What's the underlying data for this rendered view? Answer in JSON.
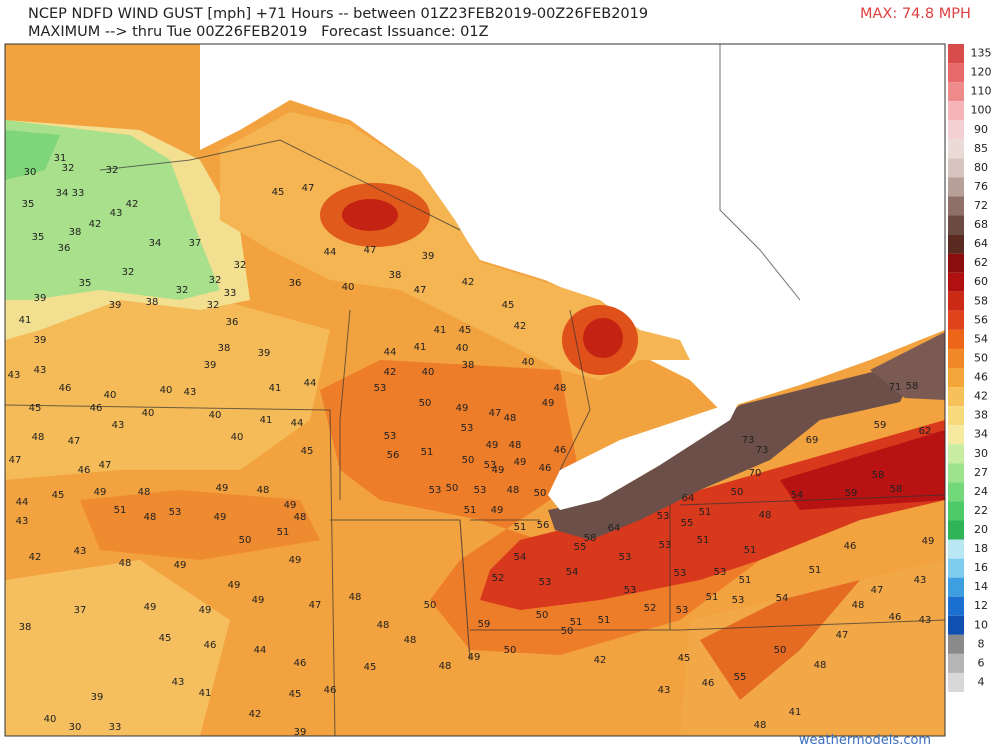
{
  "header": {
    "line1": "NCEP NDFD WIND GUST [mph] +71 Hours -- between 01Z23FEB2019-00Z26FEB2019",
    "line2": "MAXIMUM --> thru Tue 00Z26FEB2019   Forecast Issuance: 01Z",
    "max": "MAX: 74.8 MPH"
  },
  "colorbar": [
    {
      "value": 135,
      "color": "#d94c4c"
    },
    {
      "value": 120,
      "color": "#e86a6a"
    },
    {
      "value": 110,
      "color": "#ef8a8a"
    },
    {
      "value": 100,
      "color": "#f6b3b8"
    },
    {
      "value": 90,
      "color": "#f5d0d3"
    },
    {
      "value": 85,
      "color": "#eadbd7"
    },
    {
      "value": 80,
      "color": "#d8c4be"
    },
    {
      "value": 76,
      "color": "#b8a09a"
    },
    {
      "value": 72,
      "color": "#8e7068"
    },
    {
      "value": 68,
      "color": "#6b4a42"
    },
    {
      "value": 64,
      "color": "#5a2a20"
    },
    {
      "value": 62,
      "color": "#8b0d0d"
    },
    {
      "value": 60,
      "color": "#b01010"
    },
    {
      "value": 58,
      "color": "#cc2a14"
    },
    {
      "value": 56,
      "color": "#e0431a"
    },
    {
      "value": 54,
      "color": "#ec6518"
    },
    {
      "value": 50,
      "color": "#f08828"
    },
    {
      "value": 46,
      "color": "#f4a53a"
    },
    {
      "value": 42,
      "color": "#f6c15a"
    },
    {
      "value": 38,
      "color": "#f7da7c"
    },
    {
      "value": 34,
      "color": "#f6ea9e"
    },
    {
      "value": 30,
      "color": "#c8eda0"
    },
    {
      "value": 27,
      "color": "#9de48c"
    },
    {
      "value": 24,
      "color": "#72d87a"
    },
    {
      "value": 22,
      "color": "#4ccb68"
    },
    {
      "value": 20,
      "color": "#2fb558"
    },
    {
      "value": 18,
      "color": "#b9e7f3"
    },
    {
      "value": 16,
      "color": "#7fcdee"
    },
    {
      "value": 14,
      "color": "#3d9ee0"
    },
    {
      "value": 12,
      "color": "#1a6fd0"
    },
    {
      "value": 10,
      "color": "#1050b0"
    },
    {
      "value": 8,
      "color": "#8a8a8a"
    },
    {
      "value": 6,
      "color": "#b5b5b5"
    },
    {
      "value": 4,
      "color": "#d8d8d8"
    }
  ],
  "map_labels": [
    30,
    31,
    32,
    32,
    35,
    34,
    33,
    42,
    43,
    42,
    38,
    35,
    36,
    34,
    37,
    32,
    35,
    39,
    39,
    38,
    32,
    32,
    32,
    33,
    32,
    36,
    45,
    47,
    44,
    47,
    39,
    38,
    40,
    47,
    42,
    45,
    42,
    45,
    41,
    44,
    41,
    40,
    38,
    42,
    40,
    40,
    53,
    50,
    49,
    47,
    48,
    49,
    48,
    53,
    56,
    51,
    53,
    49,
    48,
    53,
    50,
    49,
    49,
    46,
    46,
    53,
    53,
    50,
    48,
    50,
    51,
    49,
    56,
    51,
    58,
    64,
    53,
    55,
    51,
    53,
    55,
    54,
    53,
    54,
    52,
    53,
    53,
    50,
    50,
    51,
    51,
    59,
    50,
    52,
    53,
    51,
    53,
    54,
    53,
    53,
    51,
    51,
    51,
    48,
    50,
    54,
    46,
    59,
    58,
    58,
    70,
    73,
    73,
    69,
    71,
    58,
    59,
    62,
    64,
    41,
    39,
    43,
    43,
    46,
    46,
    45,
    40,
    43,
    40,
    40,
    43,
    38,
    39,
    36,
    41,
    44,
    39,
    40,
    40,
    41,
    44,
    45,
    48,
    47,
    47,
    46,
    47,
    44,
    45,
    49,
    51,
    48,
    53,
    49,
    48,
    49,
    48,
    51,
    50,
    49,
    48,
    43,
    42,
    43,
    48,
    49,
    49,
    49,
    37,
    38,
    49,
    49,
    49,
    47,
    45,
    46,
    44,
    46,
    48,
    50,
    48,
    48,
    45,
    46,
    45,
    42,
    39,
    41,
    43,
    39,
    40,
    33,
    30,
    49,
    48,
    42,
    43,
    45,
    46,
    55,
    50,
    48,
    47,
    48,
    46,
    43,
    43,
    51,
    47,
    49,
    48,
    41
  ],
  "credit": "weathermodels.com"
}
